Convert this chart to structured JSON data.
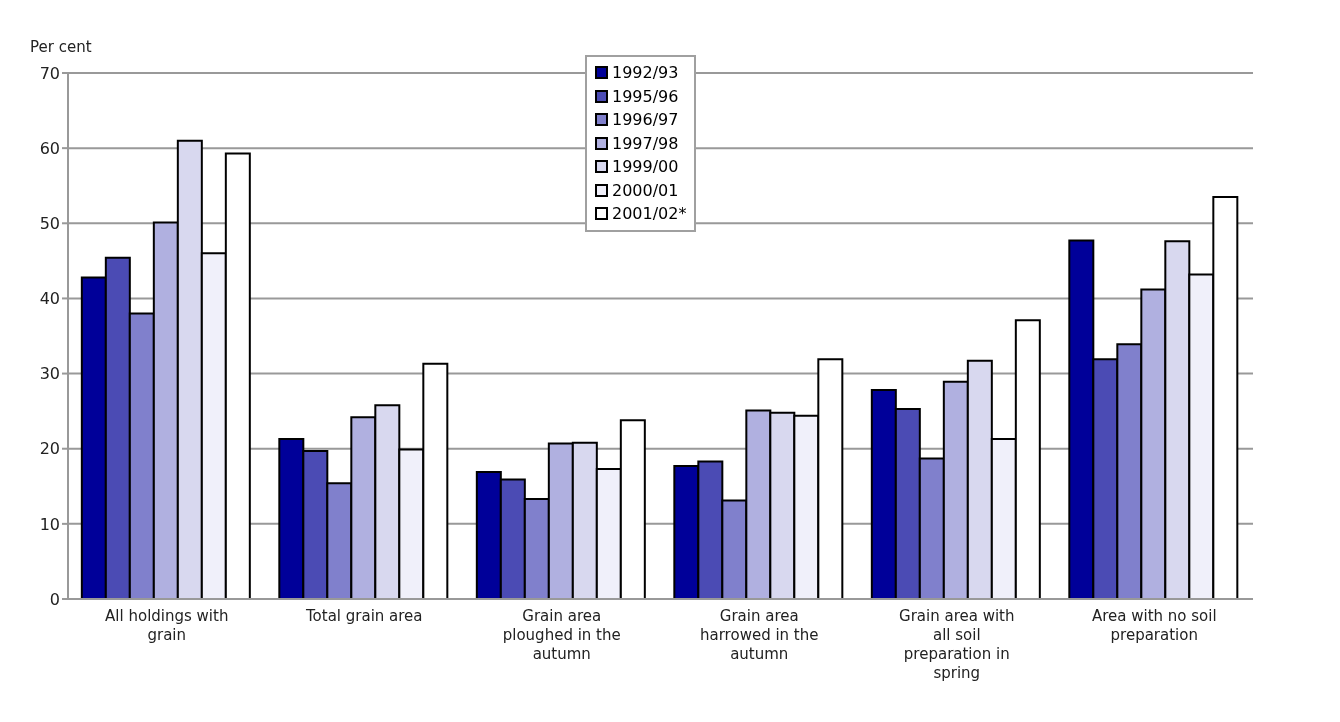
{
  "chart_data": {
    "type": "bar",
    "ylabel": "Per cent",
    "categories": [
      "All holdings with grain",
      "Total grain area",
      "Grain area ploughed in the autumn",
      "Grain area harrowed in the autumn",
      "Grain area with all soil preparation in spring",
      "Area with no soil preparation"
    ],
    "series": [
      {
        "name": "1992/93",
        "color": "#000099",
        "values": [
          42.8,
          21.3,
          16.9,
          17.7,
          27.8,
          47.7
        ]
      },
      {
        "name": "1995/96",
        "color": "#4b4bb4",
        "values": [
          45.4,
          19.7,
          15.9,
          18.3,
          25.3,
          31.9
        ]
      },
      {
        "name": "1996/97",
        "color": "#8080cc",
        "values": [
          38,
          15.4,
          13.3,
          13.1,
          18.7,
          33.9
        ]
      },
      {
        "name": "1997/98",
        "color": "#b0b0e0",
        "values": [
          50.1,
          24.2,
          20.7,
          25.1,
          28.9,
          41.2
        ]
      },
      {
        "name": "1999/00",
        "color": "#d8d8ef",
        "values": [
          61,
          25.8,
          20.8,
          24.8,
          31.7,
          47.6
        ]
      },
      {
        "name": "2000/01",
        "color": "#f0f0fa",
        "values": [
          46,
          19.9,
          17.3,
          24.4,
          21.3,
          43.2
        ]
      },
      {
        "name": "2001/02*",
        "color": "#ffffff",
        "values": [
          59.3,
          31.3,
          23.8,
          31.9,
          37.1,
          53.5
        ]
      }
    ],
    "ylim": [
      0,
      70
    ],
    "yticks": [
      0,
      10,
      20,
      30,
      40,
      50,
      60,
      70
    ],
    "grid": "y",
    "legend": "top"
  }
}
